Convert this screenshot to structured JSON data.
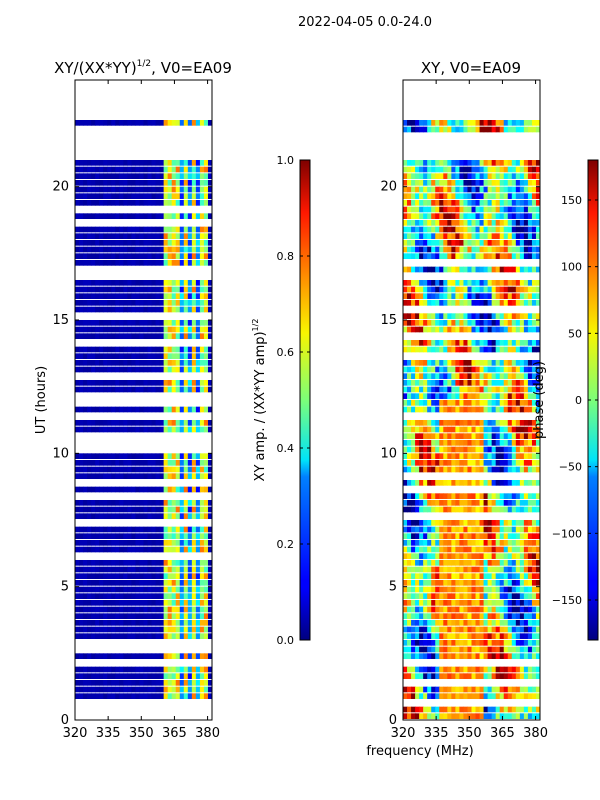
{
  "figure_title": "2022-04-05 0.0-24.0",
  "x_axis_label": "frequency (MHz)",
  "chart_data": [
    {
      "type": "heatmap",
      "title_main": "XY/(XX*YY)",
      "title_exponent": "1/2",
      "title_suffix": ", V0=EA09",
      "xlabel": "frequency (MHz)",
      "ylabel": "UT (hours)",
      "xlim": [
        320,
        382
      ],
      "ylim": [
        0,
        24
      ],
      "xticks": [
        320,
        335,
        350,
        365,
        380
      ],
      "yticks": [
        0,
        5,
        10,
        15,
        20
      ],
      "colorbar": {
        "colormap": "jet",
        "range": [
          0.0,
          1.0
        ],
        "ticks": [
          "0.0",
          "0.2",
          "0.4",
          "0.6",
          "0.8",
          "1.0"
        ],
        "label": "XY amp. / (XX*YY amp)",
        "label_exponent": "1/2"
      }
    },
    {
      "type": "heatmap",
      "title_main": "XY, V0=EA09",
      "xlabel": "frequency (MHz)",
      "ylabel": "",
      "xlim": [
        320,
        382
      ],
      "ylim": [
        0,
        24
      ],
      "xticks": [
        320,
        335,
        350,
        365,
        380
      ],
      "yticks": [
        0,
        5,
        10,
        15,
        20
      ],
      "colorbar": {
        "colormap": "jet",
        "range": [
          -180,
          180
        ],
        "ticks": [
          "150",
          "100",
          "50",
          "0",
          "−50",
          "−100",
          "−150"
        ],
        "label": "phase (deg)"
      }
    }
  ],
  "time_gaps_hours": [
    [
      22.4,
      24.0
    ],
    [
      21.1,
      22.1
    ],
    [
      16.5,
      16.8
    ],
    [
      11.3,
      11.6
    ],
    [
      2.0,
      2.3
    ],
    [
      0.6,
      0.7
    ]
  ],
  "palette": {
    "background": "#ffffff",
    "axis": "#000000",
    "colormap_low": "#00007f",
    "colormap_high": "#7f0000"
  }
}
